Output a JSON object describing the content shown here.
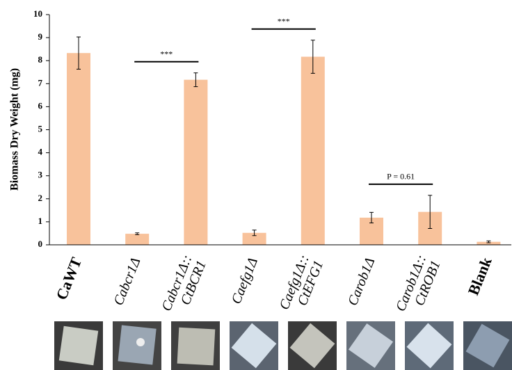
{
  "chart_data": {
    "type": "bar",
    "y_label": "Biomass Dry Weight (mg)",
    "categories": [
      [
        "CaWT"
      ],
      [
        "Cabcr1Δ"
      ],
      [
        "Cabcr1Δ::",
        "CtBCR1"
      ],
      [
        "Caefg1Δ"
      ],
      [
        "Caefg1Δ::",
        "CtEFG1"
      ],
      [
        "Carob1Δ"
      ],
      [
        "Carob1Δ::",
        "CtROB1"
      ],
      [
        "Blank"
      ]
    ],
    "values": [
      8.33,
      0.48,
      7.17,
      0.52,
      8.17,
      1.18,
      1.43,
      0.13
    ],
    "errors": [
      0.7,
      0.04,
      0.3,
      0.12,
      0.72,
      0.23,
      0.72,
      0.04
    ],
    "color": "#f8c29b",
    "ylim": [
      0,
      10
    ],
    "yticks": [
      0,
      1,
      2,
      3,
      4,
      5,
      6,
      7,
      8,
      9,
      10
    ],
    "annotations": [
      {
        "text": "***"
      },
      {
        "text": "***"
      },
      {
        "text": "P = 0.61"
      }
    ]
  }
}
